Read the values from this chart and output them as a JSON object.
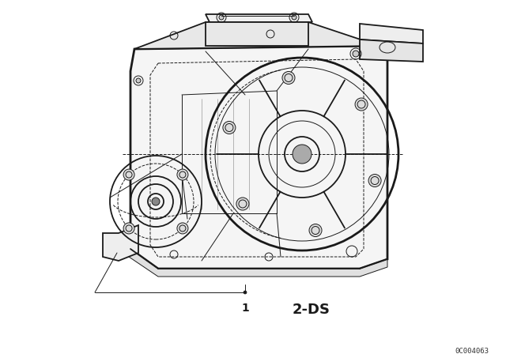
{
  "bg_color": "#ffffff",
  "line_color": "#1a1a1a",
  "label_1": "1",
  "label_2ds": "2-DS",
  "catalog_number": "0C004063",
  "fig_width": 6.4,
  "fig_height": 4.48,
  "dpi": 100,
  "lw_main": 1.3,
  "lw_thin": 0.7,
  "lw_thick": 2.0,
  "lw_med": 1.0
}
